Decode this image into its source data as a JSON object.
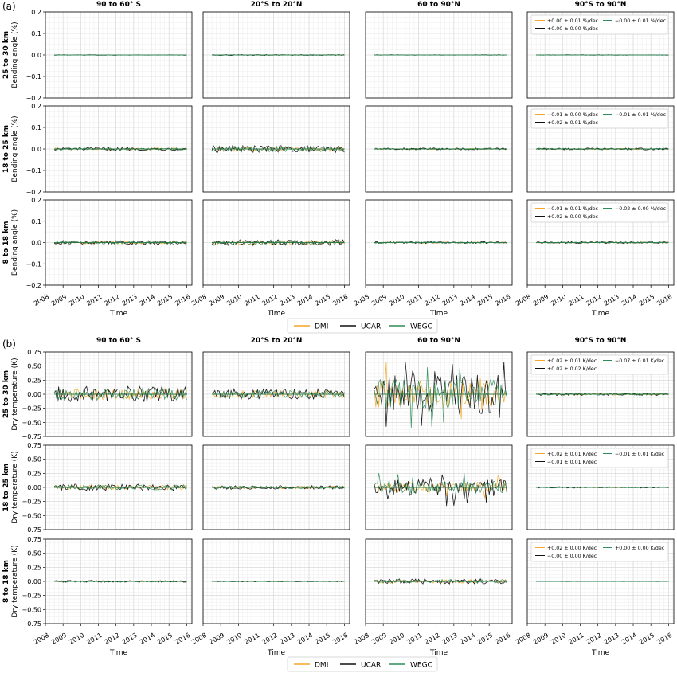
{
  "chart_data": {
    "type": "line",
    "columns": [
      "90 to 60° S",
      "20°S to 20°N",
      "60 to 90°N",
      "90°S to 90°N"
    ],
    "x_label": "Time",
    "x_ticks": [
      "2008",
      "2009",
      "2010",
      "2011",
      "2012",
      "2013",
      "2014",
      "2015",
      "2016"
    ],
    "xlim": [
      2008.0,
      2016.3
    ],
    "series_names": [
      "DMI",
      "UCAR",
      "WEGC"
    ],
    "colors": {
      "DMI": "#f5a623",
      "UCAR": "#111111",
      "WEGC": "#2e8b57"
    },
    "grid": true,
    "legend_placement": "below each panel group",
    "groups": [
      {
        "letter": "(a)",
        "ylabel": "Bending angle (%)",
        "ylim": [
          -0.2,
          0.2
        ],
        "y_ticks": [
          "−0.2",
          "−0.1",
          "0.0",
          "0.1",
          "0.2"
        ],
        "rows": [
          {
            "label": "25 to 30 km",
            "amplitude": [
              0.001,
              0.002,
              0.001,
              0.001
            ],
            "trends": [
              "+0.00 ± 0.01 %/dec",
              "+0.00 ± 0.00 %/dec",
              "−0.00 ± 0.01 %/dec"
            ]
          },
          {
            "label": "18 to 25 km",
            "amplitude": [
              0.006,
              0.014,
              0.004,
              0.004
            ],
            "trends": [
              "−0.01 ± 0.00 %/dec",
              "+0.02 ± 0.01 %/dec",
              "−0.01 ± 0.01 %/dec"
            ]
          },
          {
            "label": "8 to 18 km",
            "amplitude": [
              0.008,
              0.012,
              0.004,
              0.004
            ],
            "trends": [
              "−0.01 ± 0.01 %/dec",
              "+0.02 ± 0.00 %/dec",
              "−0.02 ± 0.00 %/dec"
            ]
          }
        ]
      },
      {
        "letter": "(b)",
        "ylabel": "Dry temperature (K)",
        "ylim": [
          -0.75,
          0.75
        ],
        "y_ticks": [
          "−0.75",
          "−0.50",
          "−0.25",
          "0.00",
          "0.25",
          "0.50",
          "0.75"
        ],
        "rows": [
          {
            "label": "25 to 30 km",
            "amplitude": [
              0.12,
              0.08,
              0.3,
              0.02
            ],
            "trends": [
              "+0.02 ± 0.01 K/dec",
              "+0.02 ± 0.02 K/dec",
              "−0.07 ± 0.01 K/dec"
            ]
          },
          {
            "label": "18 to 25 km",
            "amplitude": [
              0.05,
              0.03,
              0.12,
              0.01
            ],
            "trends": [
              "+0.02 ± 0.01 K/dec",
              "−0.01 ± 0.01 K/dec",
              "−0.01 ± 0.01 K/dec"
            ]
          },
          {
            "label": "8 to 18 km",
            "amplitude": [
              0.015,
              0.008,
              0.04,
              0.003
            ],
            "trends": [
              "+0.02 ± 0.00 K/dec",
              "−0.00 ± 0.00 K/dec",
              "+0.00 ± 0.00 K/dec"
            ]
          }
        ]
      }
    ]
  }
}
